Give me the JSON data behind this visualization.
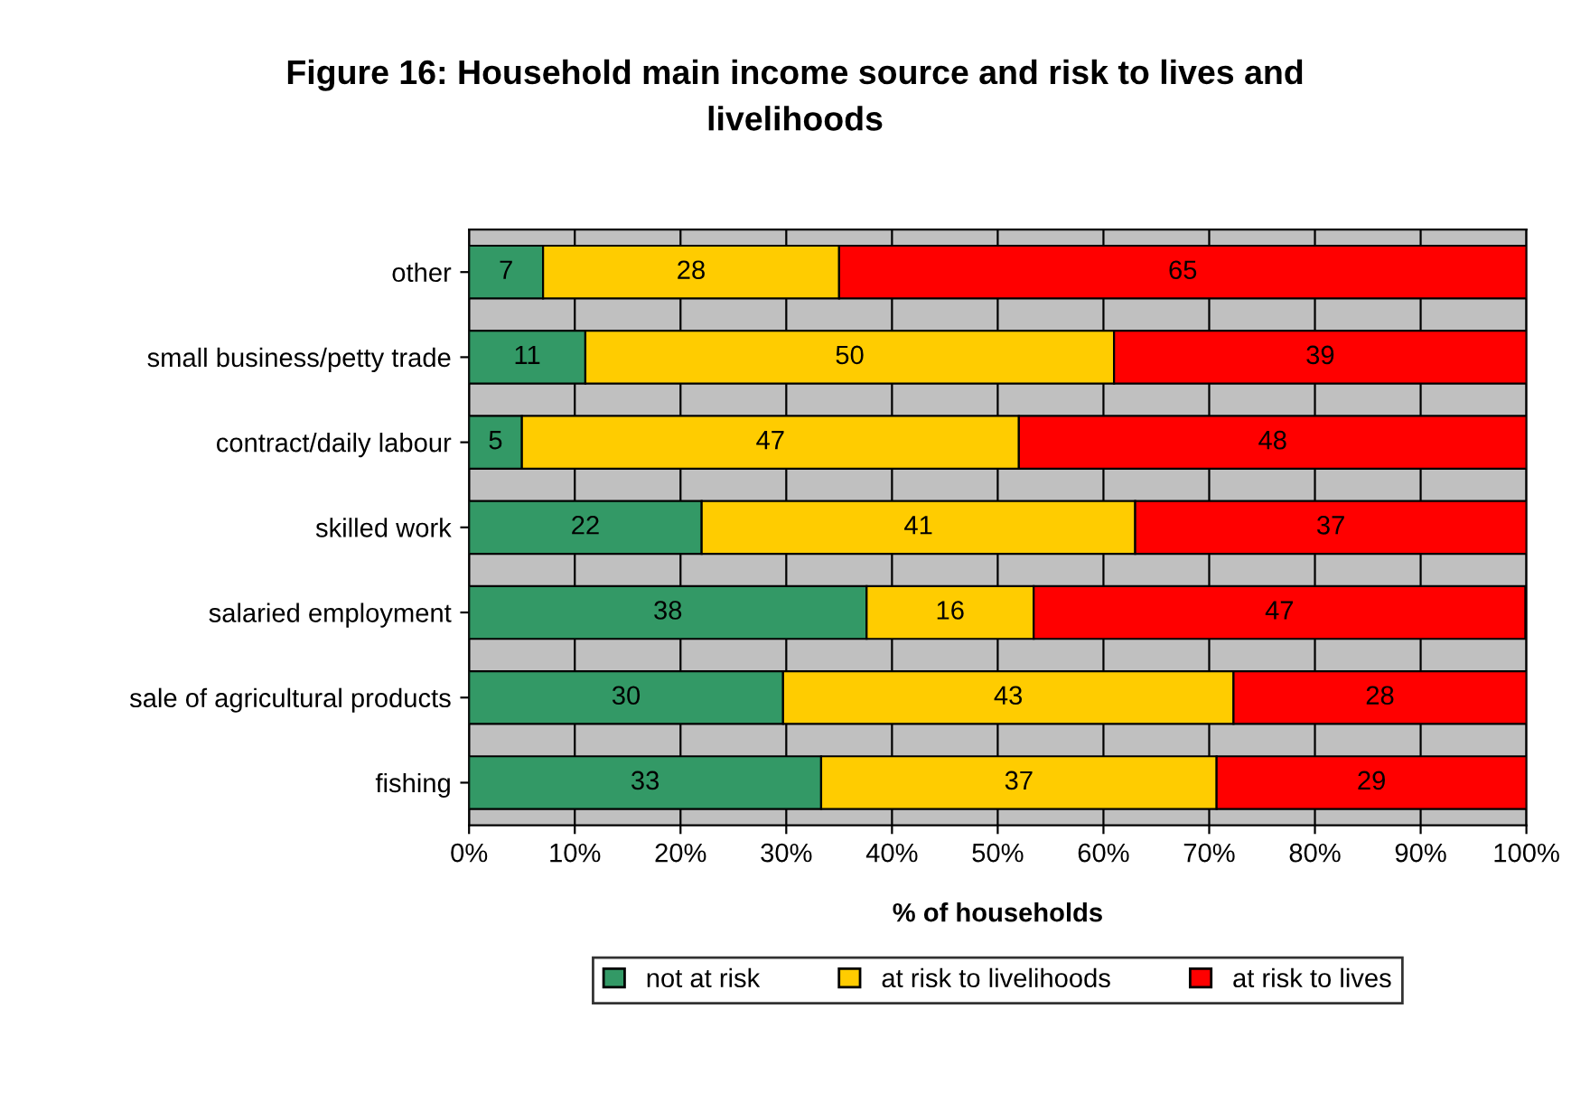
{
  "chart_data": {
    "type": "bar",
    "orientation": "horizontal",
    "stacked": true,
    "title": "Figure 16: Household main income source and risk to lives and\nlivelihoods",
    "xlabel": "% of households",
    "categories": [
      "other",
      "small business/petty trade",
      "contract/daily labour",
      "skilled work",
      "salaried employment",
      "sale of agricultural products",
      "fishing"
    ],
    "series": [
      {
        "name": "not at risk",
        "color": "#339966",
        "values": [
          7,
          11,
          5,
          22,
          37.6,
          29.7,
          33.3
        ],
        "value_labels": [
          "7",
          "11",
          "5",
          "22",
          "38",
          "30",
          "33"
        ]
      },
      {
        "name": "at risk to livelihoods",
        "color": "#ffcc00",
        "values": [
          28,
          50,
          47,
          41,
          15.8,
          42.6,
          37.4
        ],
        "value_labels": [
          "28",
          "50",
          "47",
          "41",
          "16",
          "43",
          "37"
        ]
      },
      {
        "name": "at risk to lives",
        "color": "#ff0000",
        "values": [
          65,
          39,
          48,
          37,
          46.5,
          27.7,
          29.3
        ],
        "value_labels": [
          "65",
          "39",
          "48",
          "37",
          "47",
          "28",
          "29"
        ]
      }
    ],
    "xlim": [
      0,
      100
    ],
    "xticks": [
      {
        "value": 0,
        "label": "0%"
      },
      {
        "value": 10,
        "label": "10%"
      },
      {
        "value": 20,
        "label": "20%"
      },
      {
        "value": 30,
        "label": "30%"
      },
      {
        "value": 40,
        "label": "40%"
      },
      {
        "value": 50,
        "label": "50%"
      },
      {
        "value": 60,
        "label": "60%"
      },
      {
        "value": 70,
        "label": "70%"
      },
      {
        "value": 80,
        "label": "80%"
      },
      {
        "value": 90,
        "label": "90%"
      },
      {
        "value": 100,
        "label": "100%"
      }
    ],
    "grid": "x",
    "legend": "bottom"
  }
}
